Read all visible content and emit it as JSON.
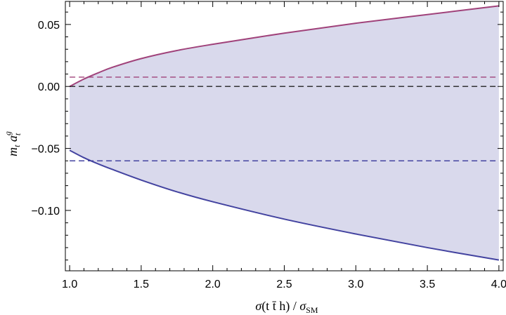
{
  "chart_data": {
    "type": "area",
    "xlabel": "σ(t t̄ h) / σ_SM",
    "ylabel": "m_t a_t^g",
    "xlim": [
      0.97,
      4.03
    ],
    "ylim": [
      -0.1487,
      0.0686
    ],
    "x_ticks": [
      1.0,
      1.5,
      2.0,
      2.5,
      3.0,
      3.5,
      4.0
    ],
    "x_tick_labels": [
      "1.0",
      "1.5",
      "2.0",
      "2.5",
      "3.0",
      "3.5",
      "4.0"
    ],
    "y_ticks": [
      0.05,
      0.0,
      -0.05,
      -0.1
    ],
    "y_tick_labels": [
      "0.05",
      "0.00",
      "−0.05",
      "−0.10"
    ],
    "grid": false,
    "band": {
      "fill_color": "#d9d9ec",
      "upper_color": "#a0427a",
      "lower_color": "#4343a0",
      "x": [
        1.0,
        1.1,
        1.2,
        1.3,
        1.5,
        1.75,
        2.0,
        2.5,
        3.0,
        3.5,
        4.0
      ],
      "upper": [
        0.0,
        0.006,
        0.011,
        0.0155,
        0.0225,
        0.029,
        0.034,
        0.043,
        0.051,
        0.058,
        0.065
      ],
      "lower": [
        -0.0515,
        -0.0575,
        -0.0625,
        -0.067,
        -0.0755,
        -0.085,
        -0.093,
        -0.107,
        -0.119,
        -0.13,
        -0.14
      ]
    },
    "reference_lines": [
      {
        "y": 0.0075,
        "color": "#a0427a",
        "style": "dashed"
      },
      {
        "y": 0.0,
        "color": "#222222",
        "style": "dashed"
      },
      {
        "y": -0.06,
        "color": "#4343a0",
        "style": "dashed"
      }
    ]
  }
}
